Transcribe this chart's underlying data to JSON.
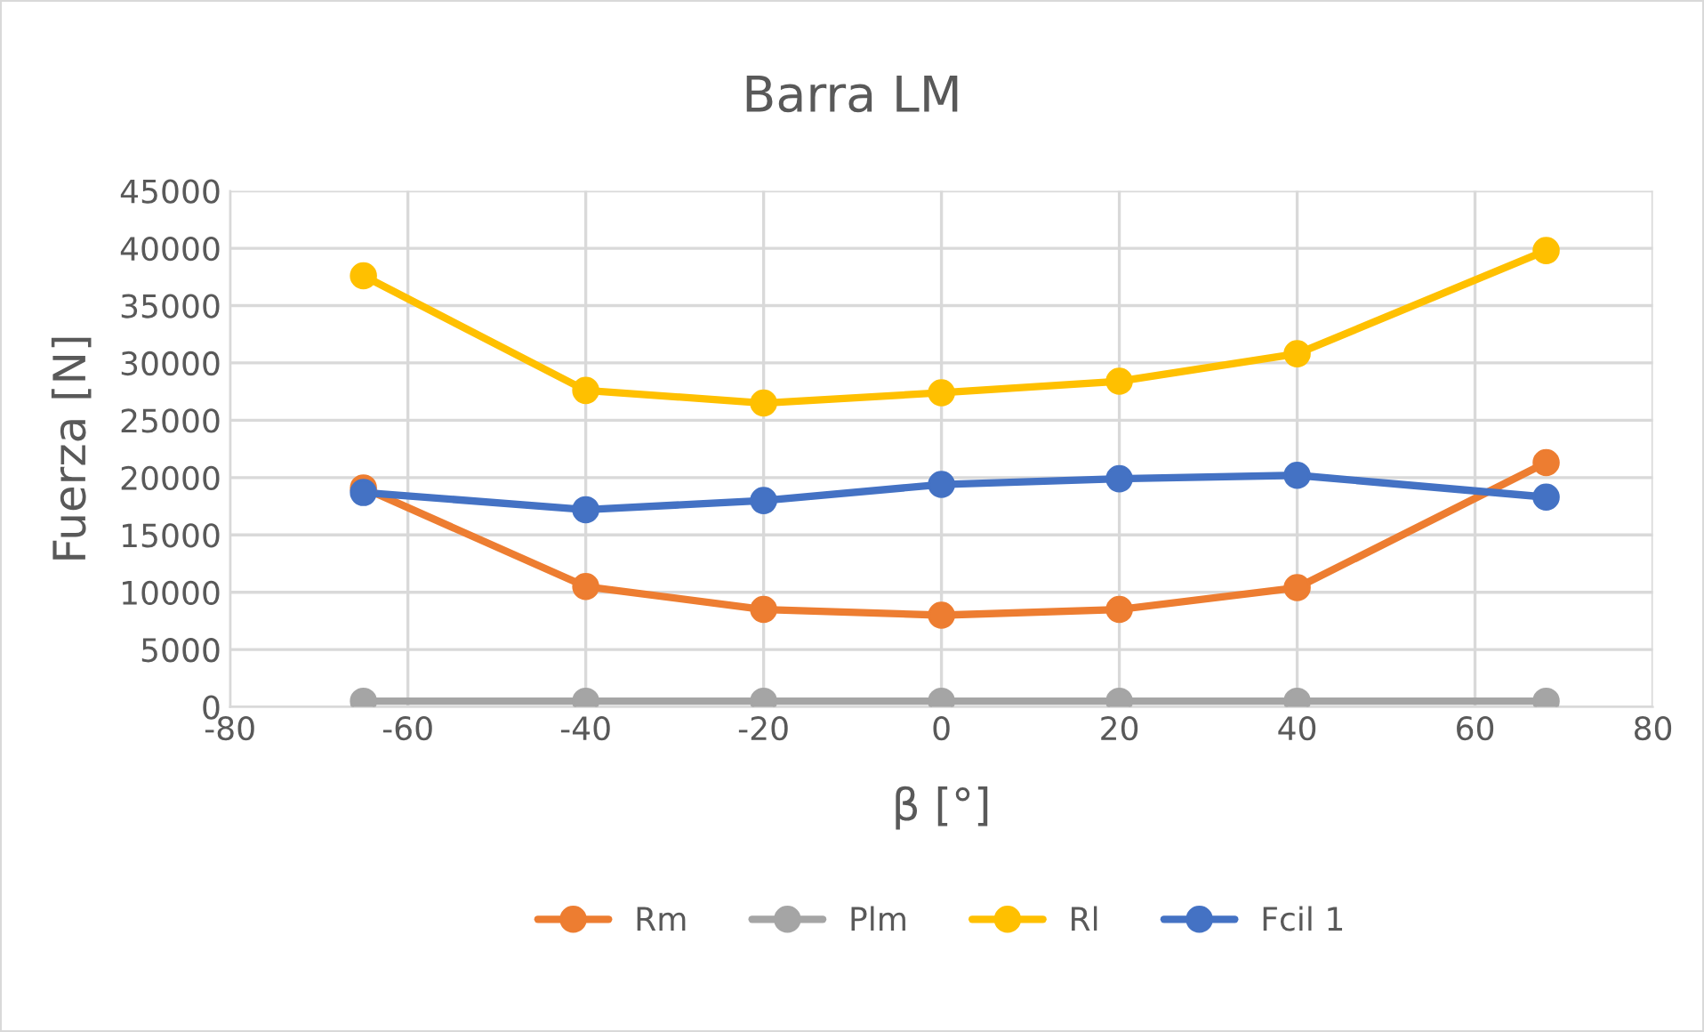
{
  "chart_data": {
    "type": "line",
    "title": "Barra LM",
    "xlabel": "β [°]",
    "ylabel": "Fuerza [N]",
    "x": [
      -65,
      -40,
      -20,
      0,
      20,
      40,
      68
    ],
    "series": [
      {
        "name": "Rm",
        "color": "#ed7d31",
        "values": [
          19100,
          10500,
          8500,
          8000,
          8500,
          10400,
          21300
        ]
      },
      {
        "name": "Plm",
        "color": "#a5a5a5",
        "values": [
          500,
          500,
          500,
          500,
          500,
          500,
          500
        ]
      },
      {
        "name": "Rl",
        "color": "#ffc000",
        "values": [
          37600,
          27600,
          26500,
          27400,
          28400,
          30800,
          39800
        ]
      },
      {
        "name": "Fcil 1",
        "color": "#4472c4",
        "values": [
          18700,
          17200,
          18000,
          19400,
          19900,
          20200,
          18300
        ]
      }
    ],
    "xlim": [
      -80,
      80
    ],
    "xticks": [
      -80,
      -60,
      -40,
      -20,
      0,
      20,
      40,
      60,
      80
    ],
    "ylim": [
      0,
      45000
    ],
    "yticks": [
      0,
      5000,
      10000,
      15000,
      20000,
      25000,
      30000,
      35000,
      40000,
      45000
    ],
    "grid": true,
    "legend": "bottom",
    "marker": "circle",
    "line_style": "solid"
  }
}
